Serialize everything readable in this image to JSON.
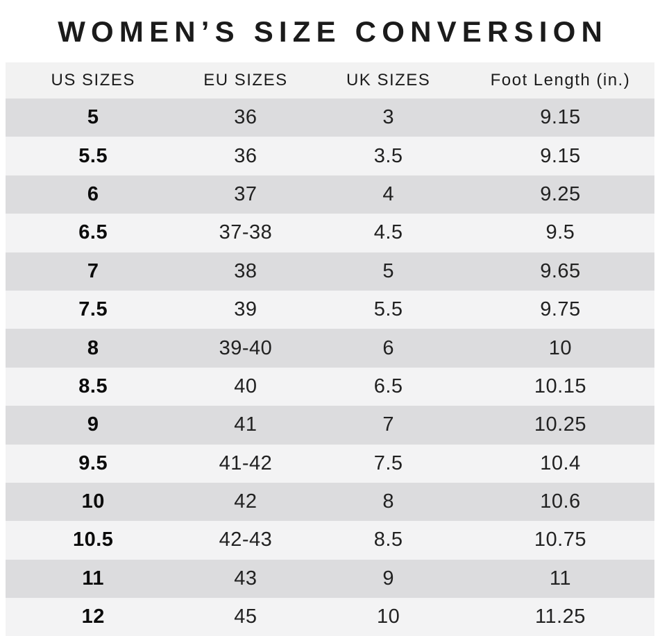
{
  "title": "WOMEN’S SIZE CONVERSION",
  "colors": {
    "page_bg": "#ffffff",
    "header_bg": "#f2f2f2",
    "row_dark": "#dcdcde",
    "row_light": "#f3f3f4",
    "title_text": "#1b1b1b",
    "cell_text": "#212121"
  },
  "table": {
    "headers": [
      "US SIZES",
      "EU SIZES",
      "UK SIZES",
      "Foot Length (in.)"
    ],
    "rows": [
      {
        "us": "5",
        "eu": "36",
        "uk": "3",
        "foot": "9.15"
      },
      {
        "us": "5.5",
        "eu": "36",
        "uk": "3.5",
        "foot": "9.15"
      },
      {
        "us": "6",
        "eu": "37",
        "uk": "4",
        "foot": "9.25"
      },
      {
        "us": "6.5",
        "eu": "37-38",
        "uk": "4.5",
        "foot": "9.5"
      },
      {
        "us": "7",
        "eu": "38",
        "uk": "5",
        "foot": "9.65"
      },
      {
        "us": "7.5",
        "eu": "39",
        "uk": "5.5",
        "foot": "9.75"
      },
      {
        "us": "8",
        "eu": "39-40",
        "uk": "6",
        "foot": "10"
      },
      {
        "us": "8.5",
        "eu": "40",
        "uk": "6.5",
        "foot": "10.15"
      },
      {
        "us": "9",
        "eu": "41",
        "uk": "7",
        "foot": "10.25"
      },
      {
        "us": "9.5",
        "eu": "41-42",
        "uk": "7.5",
        "foot": "10.4"
      },
      {
        "us": "10",
        "eu": "42",
        "uk": "8",
        "foot": "10.6"
      },
      {
        "us": "10.5",
        "eu": "42-43",
        "uk": "8.5",
        "foot": "10.75"
      },
      {
        "us": "11",
        "eu": "43",
        "uk": "9",
        "foot": "11"
      },
      {
        "us": "12",
        "eu": "45",
        "uk": "10",
        "foot": "11.25"
      }
    ]
  },
  "chart_data": {
    "type": "table",
    "title": "WOMEN’S SIZE CONVERSION",
    "columns": [
      "US SIZES",
      "EU SIZES",
      "UK SIZES",
      "Foot Length (in.)"
    ],
    "rows": [
      [
        "5",
        "36",
        "3",
        "9.15"
      ],
      [
        "5.5",
        "36",
        "3.5",
        "9.15"
      ],
      [
        "6",
        "37",
        "4",
        "9.25"
      ],
      [
        "6.5",
        "37-38",
        "4.5",
        "9.5"
      ],
      [
        "7",
        "38",
        "5",
        "9.65"
      ],
      [
        "7.5",
        "39",
        "5.5",
        "9.75"
      ],
      [
        "8",
        "39-40",
        "6",
        "10"
      ],
      [
        "8.5",
        "40",
        "6.5",
        "10.15"
      ],
      [
        "9",
        "41",
        "7",
        "10.25"
      ],
      [
        "9.5",
        "41-42",
        "7.5",
        "10.4"
      ],
      [
        "10",
        "42",
        "8",
        "10.6"
      ],
      [
        "10.5",
        "42-43",
        "8.5",
        "10.75"
      ],
      [
        "11",
        "43",
        "9",
        "11"
      ],
      [
        "12",
        "45",
        "10",
        "11.25"
      ]
    ],
    "layout": {
      "striped": true,
      "first_data_row_shade": "dark",
      "bold_column": "US SIZES"
    }
  }
}
